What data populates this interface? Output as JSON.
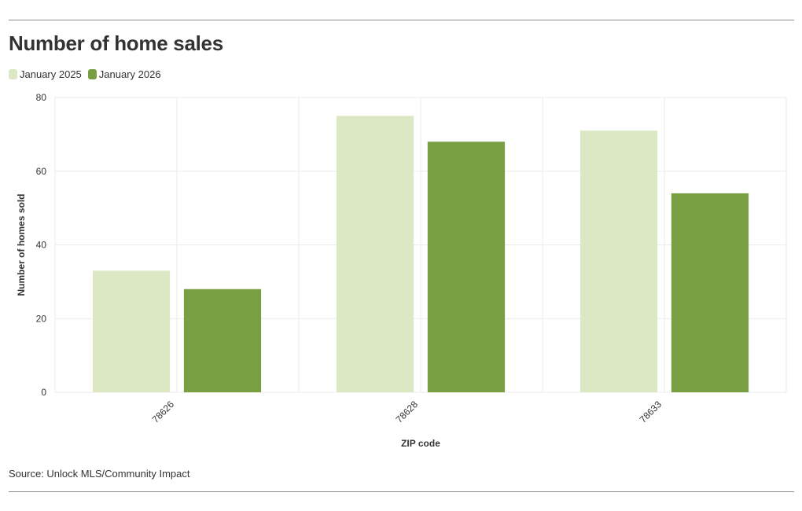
{
  "header": {
    "title": "Number of home sales"
  },
  "footer": {
    "source": "Source: Unlock MLS/Community Impact"
  },
  "colors": {
    "jan2025": "#dce8c4",
    "jan2026": "#789f42",
    "grid": "#ebebeb"
  },
  "chart_data": {
    "type": "bar",
    "title": "Number of home sales",
    "xlabel": "ZIP code",
    "ylabel": "Number of homes sold",
    "categories": [
      "78626",
      "78628",
      "78633"
    ],
    "series": [
      {
        "name": "January 2025",
        "values": [
          33,
          75,
          71
        ]
      },
      {
        "name": "January 2026",
        "values": [
          28,
          68,
          54
        ]
      }
    ],
    "ylim": [
      0,
      80
    ],
    "yticks": [
      0,
      20,
      40,
      60,
      80
    ],
    "grid": true,
    "legend": "top-left"
  }
}
